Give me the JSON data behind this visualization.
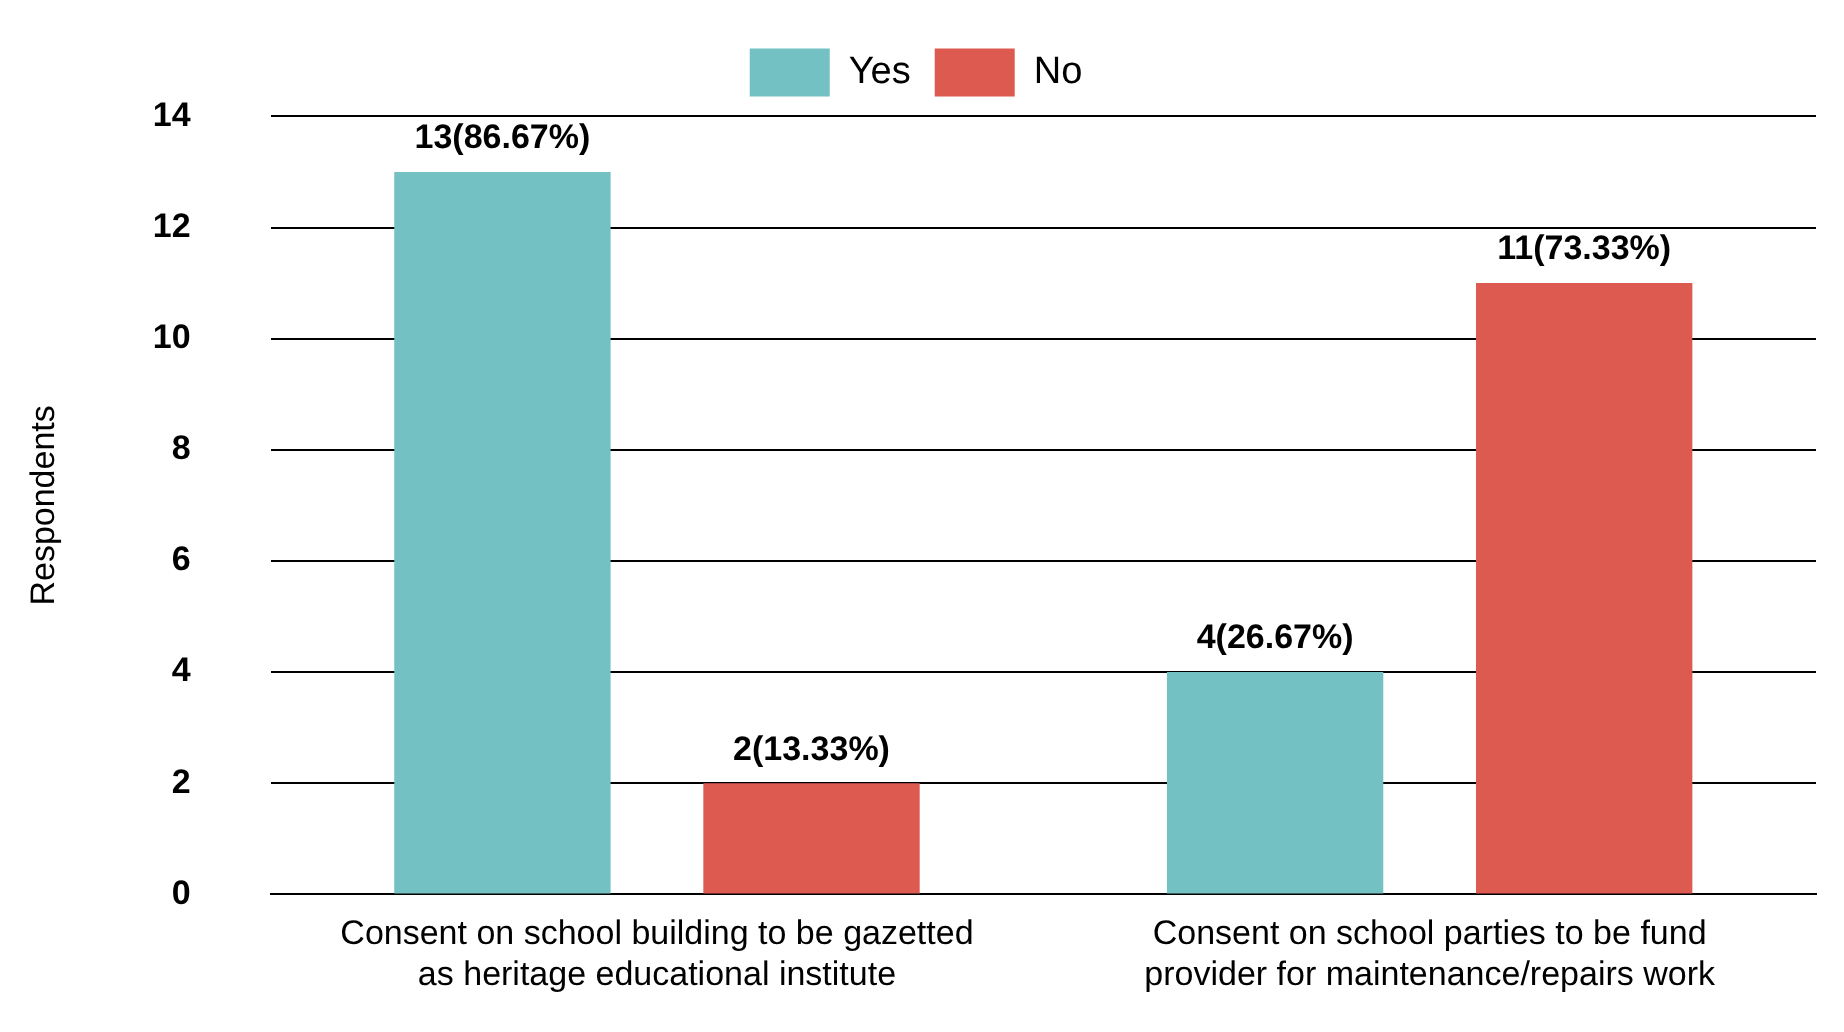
{
  "chart_data": {
    "type": "bar",
    "ylabel": "Respondents",
    "categories": [
      "Consent on school building to be gazetted as heritage educational institute",
      "Consent on school parties to be fund provider for maintenance/repairs work"
    ],
    "series": [
      {
        "name": "Yes",
        "color": "#73c1c2",
        "values": [
          13,
          4
        ],
        "value_labels": [
          "13(86.67%)",
          "4(26.67%)"
        ]
      },
      {
        "name": "No",
        "color": "#dc5a50",
        "values": [
          2,
          11
        ],
        "value_labels": [
          "2(13.33%)",
          "11(73.33%)"
        ]
      }
    ],
    "ylim": [
      0,
      14
    ],
    "yticks": [
      0,
      2,
      4,
      6,
      8,
      10,
      12,
      14
    ],
    "grid": "y",
    "legend": "top"
  }
}
